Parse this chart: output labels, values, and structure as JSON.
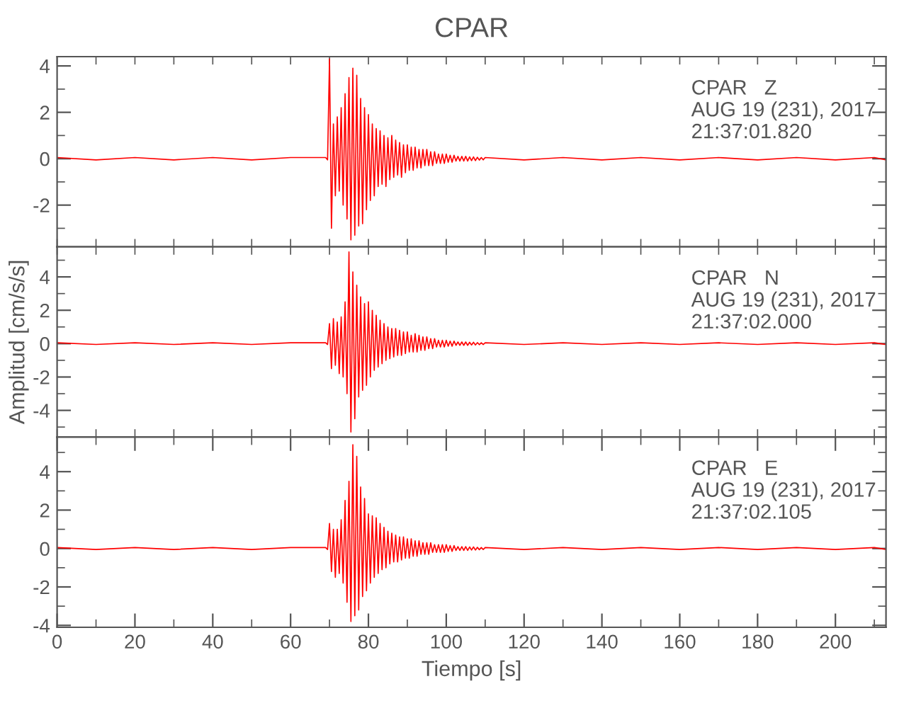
{
  "chart_data": [
    {
      "type": "line",
      "title": "CPAR",
      "tick_labels": "y",
      "line_style": "solid",
      "annotations": [
        "CPAR   Z",
        "AUG 19 (231), 2017",
        "21:37:01.820"
      ],
      "xlim": [
        0,
        213
      ],
      "xticks": [
        {
          "value": 0,
          "label": null
        },
        {
          "value": 10,
          "label": null
        },
        {
          "value": 20,
          "label": null
        },
        {
          "value": 30,
          "label": null
        },
        {
          "value": 40,
          "label": null
        },
        {
          "value": 50,
          "label": null
        },
        {
          "value": 60,
          "label": null
        },
        {
          "value": 70,
          "label": null
        },
        {
          "value": 80,
          "label": null
        },
        {
          "value": 90,
          "label": null
        },
        {
          "value": 100,
          "label": null
        },
        {
          "value": 110,
          "label": null
        },
        {
          "value": 120,
          "label": null
        },
        {
          "value": 130,
          "label": null
        },
        {
          "value": 140,
          "label": null
        },
        {
          "value": 150,
          "label": null
        },
        {
          "value": 160,
          "label": null
        },
        {
          "value": 170,
          "label": null
        },
        {
          "value": 180,
          "label": null
        },
        {
          "value": 190,
          "label": null
        },
        {
          "value": 200,
          "label": null
        },
        {
          "value": 210,
          "label": null
        }
      ],
      "ylim": [
        -3.8,
        4.4
      ],
      "yticks": [
        {
          "value": -3,
          "label": null
        },
        -2,
        {
          "value": -1,
          "label": null
        },
        0,
        {
          "value": 1,
          "label": null
        },
        2,
        {
          "value": 3,
          "label": null
        },
        4
      ],
      "x": [
        0,
        10,
        20,
        30,
        40,
        50,
        60,
        69,
        69.5,
        70,
        70.5,
        71,
        71.5,
        72,
        72.5,
        73,
        73.5,
        74,
        74.5,
        75,
        75.5,
        76,
        76.5,
        77,
        77.5,
        78,
        78.5,
        79,
        79.5,
        80,
        80.5,
        81,
        81.5,
        82,
        82.5,
        83,
        83.5,
        84,
        84.5,
        85,
        85.5,
        86,
        86.5,
        87,
        87.5,
        88,
        88.5,
        89,
        89.5,
        90,
        90.5,
        91,
        91.5,
        92,
        92.5,
        93,
        93.5,
        94,
        94.5,
        95,
        95.5,
        96,
        96.5,
        97,
        97.5,
        98,
        98.5,
        99,
        99.5,
        100,
        100.5,
        101,
        101.5,
        102,
        102.5,
        103,
        103.5,
        104,
        104.5,
        105,
        105.5,
        106,
        106.5,
        107,
        107.5,
        108,
        108.5,
        109,
        109.5,
        110,
        120,
        130,
        140,
        150,
        160,
        170,
        180,
        190,
        200,
        210,
        213
      ],
      "series": [
        {
          "color": "#ff0000",
          "values": [
            0.05,
            -0.05,
            0.05,
            -0.05,
            0.05,
            -0.05,
            0.05,
            0.05,
            -0.05,
            4.3,
            -3.0,
            1.5,
            -1.6,
            1.8,
            -1.4,
            2.2,
            -2.0,
            2.8,
            -2.6,
            3.5,
            -3.5,
            3.9,
            -3.3,
            3.6,
            -2.9,
            2.6,
            -2.8,
            2.2,
            -2.2,
            1.9,
            -1.8,
            1.5,
            -1.6,
            1.3,
            -1.2,
            1.2,
            -1.1,
            1.0,
            -1.2,
            0.9,
            -0.9,
            1.0,
            -0.8,
            0.8,
            -0.7,
            0.7,
            -0.8,
            0.6,
            -0.6,
            0.6,
            -0.5,
            0.5,
            -0.5,
            0.5,
            -0.4,
            0.4,
            -0.4,
            0.4,
            -0.3,
            0.4,
            -0.3,
            0.3,
            -0.3,
            0.3,
            -0.2,
            0.2,
            -0.2,
            0.2,
            -0.2,
            0.2,
            -0.15,
            0.15,
            -0.15,
            0.15,
            -0.1,
            0.1,
            -0.1,
            0.1,
            -0.1,
            0.1,
            -0.1,
            0.08,
            -0.08,
            0.08,
            -0.08,
            0.06,
            -0.06,
            0.05,
            -0.05,
            0.05,
            -0.05,
            0.05,
            -0.05,
            0.05,
            -0.05,
            0.05,
            -0.05,
            0.05,
            -0.05,
            0.05,
            -0.05
          ]
        }
      ]
    },
    {
      "type": "line",
      "ylabel": "Amplitud [cm/s/s]",
      "tick_labels": "y",
      "line_style": "solid",
      "annotations": [
        "CPAR   N",
        "AUG 19 (231), 2017",
        "21:37:02.000"
      ],
      "xlim": [
        0,
        213
      ],
      "xticks": [
        {
          "value": 0,
          "label": null
        },
        {
          "value": 10,
          "label": null
        },
        {
          "value": 20,
          "label": null
        },
        {
          "value": 30,
          "label": null
        },
        {
          "value": 40,
          "label": null
        },
        {
          "value": 50,
          "label": null
        },
        {
          "value": 60,
          "label": null
        },
        {
          "value": 70,
          "label": null
        },
        {
          "value": 80,
          "label": null
        },
        {
          "value": 90,
          "label": null
        },
        {
          "value": 100,
          "label": null
        },
        {
          "value": 110,
          "label": null
        },
        {
          "value": 120,
          "label": null
        },
        {
          "value": 130,
          "label": null
        },
        {
          "value": 140,
          "label": null
        },
        {
          "value": 150,
          "label": null
        },
        {
          "value": 160,
          "label": null
        },
        {
          "value": 170,
          "label": null
        },
        {
          "value": 180,
          "label": null
        },
        {
          "value": 190,
          "label": null
        },
        {
          "value": 200,
          "label": null
        },
        {
          "value": 210,
          "label": null
        }
      ],
      "ylim": [
        -5.6,
        5.8
      ],
      "yticks": [
        {
          "value": -5,
          "label": null
        },
        -4,
        {
          "value": -3,
          "label": null
        },
        -2,
        {
          "value": -1,
          "label": null
        },
        0,
        {
          "value": 1,
          "label": null
        },
        2,
        {
          "value": 3,
          "label": null
        },
        4,
        {
          "value": 5,
          "label": null
        }
      ],
      "x": [
        0,
        10,
        20,
        30,
        40,
        50,
        60,
        69,
        69.5,
        70,
        70.5,
        71,
        71.5,
        72,
        72.5,
        73,
        73.5,
        74,
        74.5,
        75,
        75.5,
        76,
        76.5,
        77,
        77.5,
        78,
        78.5,
        79,
        79.5,
        80,
        80.5,
        81,
        81.5,
        82,
        82.5,
        83,
        83.5,
        84,
        84.5,
        85,
        85.5,
        86,
        86.5,
        87,
        87.5,
        88,
        88.5,
        89,
        89.5,
        90,
        90.5,
        91,
        91.5,
        92,
        92.5,
        93,
        93.5,
        94,
        94.5,
        95,
        95.5,
        96,
        96.5,
        97,
        97.5,
        98,
        98.5,
        99,
        99.5,
        100,
        100.5,
        101,
        101.5,
        102,
        102.5,
        103,
        103.5,
        104,
        104.5,
        105,
        105.5,
        106,
        106.5,
        107,
        107.5,
        108,
        108.5,
        109,
        109.5,
        110,
        120,
        130,
        140,
        150,
        160,
        170,
        180,
        190,
        200,
        210,
        213
      ],
      "series": [
        {
          "color": "#ff0000",
          "values": [
            0.05,
            -0.05,
            0.05,
            -0.05,
            0.05,
            -0.05,
            0.05,
            0.05,
            -0.05,
            1.2,
            -1.5,
            1.5,
            -1.3,
            1.3,
            -1.8,
            1.6,
            -2.0,
            2.5,
            -3.0,
            5.5,
            -5.3,
            4.3,
            -4.5,
            3.5,
            -3.2,
            2.8,
            -2.8,
            2.4,
            -2.5,
            2.5,
            -2.0,
            2.0,
            -1.6,
            1.7,
            -1.4,
            1.4,
            -1.2,
            1.2,
            -1.0,
            1.0,
            -0.9,
            0.9,
            -0.8,
            0.9,
            -0.7,
            0.8,
            -0.7,
            0.7,
            -0.6,
            0.7,
            -0.5,
            0.5,
            -0.5,
            0.6,
            -0.5,
            0.5,
            -0.4,
            0.4,
            -0.4,
            0.4,
            -0.3,
            0.3,
            -0.3,
            0.3,
            -0.2,
            0.2,
            -0.2,
            0.2,
            -0.2,
            0.2,
            -0.15,
            0.15,
            -0.15,
            0.15,
            -0.1,
            0.1,
            -0.1,
            0.1,
            -0.1,
            0.1,
            -0.1,
            0.08,
            -0.08,
            0.08,
            -0.08,
            0.06,
            -0.06,
            0.05,
            -0.05,
            0.05,
            -0.05,
            0.05,
            -0.05,
            0.05,
            -0.05,
            0.05,
            -0.05,
            0.05,
            -0.05,
            0.05,
            -0.05
          ]
        }
      ]
    },
    {
      "type": "line",
      "xlabel": "Tiempo [s]",
      "line_style": "solid",
      "annotations": [
        "CPAR   E",
        "AUG 19 (231), 2017",
        "21:37:02.105"
      ],
      "xlim": [
        0,
        213
      ],
      "xticks": [
        0,
        {
          "value": 10,
          "label": null
        },
        20,
        {
          "value": 30,
          "label": null
        },
        40,
        {
          "value": 50,
          "label": null
        },
        60,
        {
          "value": 70,
          "label": null
        },
        80,
        {
          "value": 90,
          "label": null
        },
        100,
        {
          "value": 110,
          "label": null
        },
        120,
        {
          "value": 130,
          "label": null
        },
        140,
        {
          "value": 150,
          "label": null
        },
        160,
        {
          "value": 170,
          "label": null
        },
        180,
        {
          "value": 190,
          "label": null
        },
        200,
        {
          "value": 210,
          "label": null
        }
      ],
      "ylim": [
        -4.1,
        5.8
      ],
      "yticks": [
        -4,
        {
          "value": -3,
          "label": null
        },
        -2,
        {
          "value": -1,
          "label": null
        },
        0,
        {
          "value": 1,
          "label": null
        },
        2,
        {
          "value": 3,
          "label": null
        },
        4,
        {
          "value": 5,
          "label": null
        }
      ],
      "x": [
        0,
        10,
        20,
        30,
        40,
        50,
        60,
        69,
        69.5,
        70,
        70.5,
        71,
        71.5,
        72,
        72.5,
        73,
        73.5,
        74,
        74.5,
        75,
        75.5,
        76,
        76.5,
        77,
        77.5,
        78,
        78.5,
        79,
        79.5,
        80,
        80.5,
        81,
        81.5,
        82,
        82.5,
        83,
        83.5,
        84,
        84.5,
        85,
        85.5,
        86,
        86.5,
        87,
        87.5,
        88,
        88.5,
        89,
        89.5,
        90,
        90.5,
        91,
        91.5,
        92,
        92.5,
        93,
        93.5,
        94,
        94.5,
        95,
        95.5,
        96,
        96.5,
        97,
        97.5,
        98,
        98.5,
        99,
        99.5,
        100,
        100.5,
        101,
        101.5,
        102,
        102.5,
        103,
        103.5,
        104,
        104.5,
        105,
        105.5,
        106,
        106.5,
        107,
        107.5,
        108,
        108.5,
        109,
        109.5,
        110,
        120,
        130,
        140,
        150,
        160,
        170,
        180,
        190,
        200,
        210,
        213
      ],
      "series": [
        {
          "color": "#ff0000",
          "values": [
            0.05,
            -0.05,
            0.05,
            -0.05,
            0.05,
            -0.05,
            0.05,
            0.05,
            -0.05,
            1.3,
            -1.2,
            1.0,
            -1.5,
            1.0,
            -1.3,
            1.5,
            -1.8,
            2.5,
            -2.8,
            3.5,
            -3.8,
            5.4,
            -3.5,
            4.8,
            -3.2,
            3.2,
            -2.5,
            2.6,
            -2.2,
            1.8,
            -1.8,
            1.7,
            -1.5,
            1.6,
            -1.3,
            1.3,
            -1.1,
            1.1,
            -1.0,
            0.9,
            -0.8,
            0.8,
            -0.7,
            0.7,
            -0.7,
            0.6,
            -0.6,
            0.6,
            -0.5,
            0.5,
            -0.5,
            0.5,
            -0.4,
            0.4,
            -0.4,
            0.4,
            -0.3,
            0.3,
            -0.3,
            0.3,
            -0.3,
            0.3,
            -0.2,
            0.2,
            -0.2,
            0.2,
            -0.2,
            0.2,
            -0.2,
            0.2,
            -0.15,
            0.15,
            -0.15,
            0.15,
            -0.1,
            0.1,
            -0.1,
            0.1,
            -0.1,
            0.1,
            -0.1,
            0.08,
            -0.08,
            0.08,
            -0.08,
            0.06,
            -0.06,
            0.05,
            -0.05,
            0.05,
            -0.05,
            0.05,
            -0.05,
            0.05,
            -0.05,
            0.05,
            -0.05,
            0.05,
            -0.05,
            0.05,
            -0.05
          ]
        }
      ]
    }
  ]
}
